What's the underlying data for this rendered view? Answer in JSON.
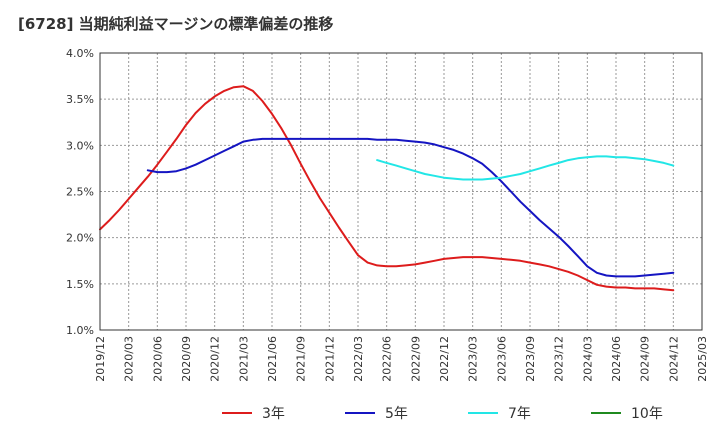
{
  "chart_data": {
    "type": "line",
    "title": "[6728]  当期純利益マージンの標準偏差の推移",
    "xlabel": "",
    "ylabel": "",
    "x_ticks": [
      "2019/12",
      "2020/03",
      "2020/06",
      "2020/09",
      "2020/12",
      "2021/03",
      "2021/06",
      "2021/09",
      "2021/12",
      "2022/03",
      "2022/06",
      "2022/09",
      "2022/12",
      "2023/03",
      "2023/06",
      "2023/09",
      "2023/12",
      "2024/03",
      "2024/06",
      "2024/09",
      "2024/12",
      "2025/03"
    ],
    "y_ticks": [
      "1.0%",
      "1.5%",
      "2.0%",
      "2.5%",
      "3.0%",
      "3.5%",
      "4.0%"
    ],
    "ylim": [
      1.0,
      4.0
    ],
    "grid": true,
    "legend_position": "bottom",
    "series": [
      {
        "name": "3年",
        "color": "#dd1c1c",
        "x": [
          "2019/12",
          "2020/01",
          "2020/02",
          "2020/03",
          "2020/04",
          "2020/05",
          "2020/06",
          "2020/07",
          "2020/08",
          "2020/09",
          "2020/10",
          "2020/11",
          "2020/12",
          "2021/01",
          "2021/02",
          "2021/03",
          "2021/04",
          "2021/05",
          "2021/06",
          "2021/07",
          "2021/08",
          "2021/09",
          "2021/10",
          "2021/11",
          "2021/12",
          "2022/01",
          "2022/02",
          "2022/03",
          "2022/04",
          "2022/05",
          "2022/06",
          "2022/07",
          "2022/08",
          "2022/09",
          "2022/10",
          "2022/11",
          "2022/12",
          "2023/01",
          "2023/02",
          "2023/03",
          "2023/04",
          "2023/05",
          "2023/06",
          "2023/07",
          "2023/08",
          "2023/09",
          "2023/10",
          "2023/11",
          "2023/12",
          "2024/01",
          "2024/02",
          "2024/03",
          "2024/04",
          "2024/05",
          "2024/06",
          "2024/07",
          "2024/08",
          "2024/09",
          "2024/10",
          "2024/11",
          "2024/12"
        ],
        "values": [
          2.09,
          2.19,
          2.3,
          2.42,
          2.54,
          2.66,
          2.79,
          2.93,
          3.07,
          3.22,
          3.35,
          3.45,
          3.53,
          3.59,
          3.63,
          3.64,
          3.59,
          3.48,
          3.34,
          3.18,
          3.0,
          2.8,
          2.61,
          2.43,
          2.27,
          2.11,
          1.96,
          1.81,
          1.73,
          1.7,
          1.69,
          1.69,
          1.7,
          1.71,
          1.73,
          1.75,
          1.77,
          1.78,
          1.79,
          1.79,
          1.79,
          1.78,
          1.77,
          1.76,
          1.75,
          1.73,
          1.71,
          1.69,
          1.66,
          1.63,
          1.59,
          1.54,
          1.49,
          1.47,
          1.46,
          1.46,
          1.45,
          1.45,
          1.45,
          1.44,
          1.43
        ]
      },
      {
        "name": "5年",
        "color": "#1515c2",
        "x": [
          "2020/05",
          "2020/06",
          "2020/07",
          "2020/08",
          "2020/09",
          "2020/10",
          "2020/11",
          "2020/12",
          "2021/01",
          "2021/02",
          "2021/03",
          "2021/04",
          "2021/05",
          "2021/06",
          "2021/07",
          "2021/08",
          "2021/09",
          "2021/10",
          "2021/11",
          "2021/12",
          "2022/01",
          "2022/02",
          "2022/03",
          "2022/04",
          "2022/05",
          "2022/06",
          "2022/07",
          "2022/08",
          "2022/09",
          "2022/10",
          "2022/11",
          "2022/12",
          "2023/01",
          "2023/02",
          "2023/03",
          "2023/04",
          "2023/05",
          "2023/06",
          "2023/07",
          "2023/08",
          "2023/09",
          "2023/10",
          "2023/11",
          "2023/12",
          "2024/01",
          "2024/02",
          "2024/03",
          "2024/04",
          "2024/05",
          "2024/06",
          "2024/07",
          "2024/08",
          "2024/09",
          "2024/10",
          "2024/11",
          "2024/12"
        ],
        "values": [
          2.73,
          2.71,
          2.71,
          2.72,
          2.75,
          2.79,
          2.84,
          2.89,
          2.94,
          2.99,
          3.04,
          3.06,
          3.07,
          3.07,
          3.07,
          3.07,
          3.07,
          3.07,
          3.07,
          3.07,
          3.07,
          3.07,
          3.07,
          3.07,
          3.06,
          3.06,
          3.06,
          3.05,
          3.04,
          3.03,
          3.01,
          2.98,
          2.95,
          2.91,
          2.86,
          2.8,
          2.71,
          2.61,
          2.5,
          2.39,
          2.29,
          2.19,
          2.1,
          2.01,
          1.91,
          1.8,
          1.69,
          1.62,
          1.59,
          1.58,
          1.58,
          1.58,
          1.59,
          1.6,
          1.61,
          1.62
        ]
      },
      {
        "name": "7年",
        "color": "#22e6e6",
        "x": [
          "2022/05",
          "2022/06",
          "2022/07",
          "2022/08",
          "2022/09",
          "2022/10",
          "2022/11",
          "2022/12",
          "2023/01",
          "2023/02",
          "2023/03",
          "2023/04",
          "2023/05",
          "2023/06",
          "2023/07",
          "2023/08",
          "2023/09",
          "2023/10",
          "2023/11",
          "2023/12",
          "2024/01",
          "2024/02",
          "2024/03",
          "2024/04",
          "2024/05",
          "2024/06",
          "2024/07",
          "2024/08",
          "2024/09",
          "2024/10",
          "2024/11",
          "2024/12"
        ],
        "values": [
          2.84,
          2.81,
          2.78,
          2.75,
          2.72,
          2.69,
          2.67,
          2.65,
          2.64,
          2.63,
          2.63,
          2.63,
          2.64,
          2.65,
          2.67,
          2.69,
          2.72,
          2.75,
          2.78,
          2.81,
          2.84,
          2.86,
          2.87,
          2.88,
          2.88,
          2.87,
          2.87,
          2.86,
          2.85,
          2.83,
          2.81,
          2.78
        ]
      },
      {
        "name": "10年",
        "color": "#1f8a1f",
        "x": [],
        "values": []
      }
    ]
  }
}
